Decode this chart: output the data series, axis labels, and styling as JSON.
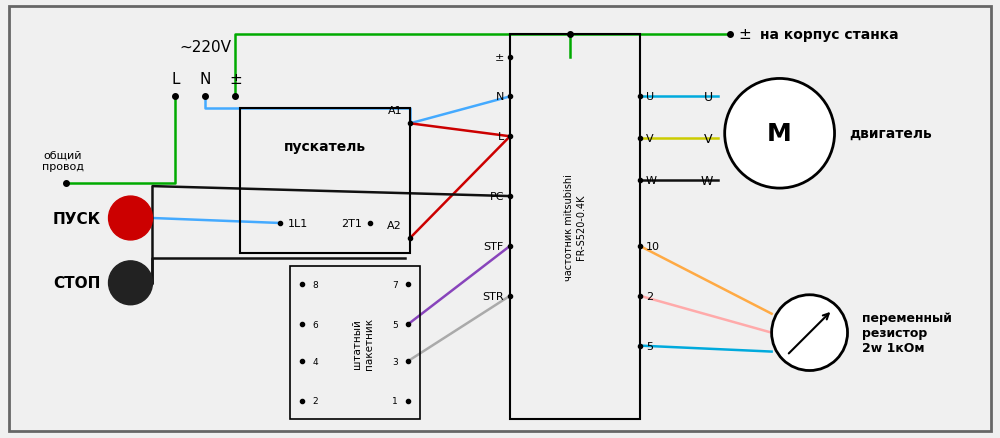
{
  "bg_color": "#f0f0f0",
  "voltage_label": "~220V",
  "green_wire_color": "#00aa00",
  "blue_wire_color": "#44aaff",
  "red_wire_color": "#cc0000",
  "black_wire_color": "#111111",
  "cyan_wire_color": "#00aadd",
  "yellow_wire_color": "#cccc00",
  "gray_wire_color": "#aaaaaa",
  "purple_wire_color": "#8844bb",
  "pink_wire_color": "#ffaaaa",
  "orange_wire_color": "#ffaa44",
  "puskatel_label": "пускатель",
  "pusk_label": "ПУСК",
  "stop_label": "СТОП",
  "obshiy_label": "общий\nпровод",
  "na_korpus_label": "на корпус станка",
  "dvigatel_label": "двигатель",
  "perem_res_label": "переменный\nрезистор\n2w 1кОм",
  "chastotnik_label": "частотник mitsubishi\nFR-S520-0.4K",
  "shtatny_label": "штатный\nпакетник"
}
